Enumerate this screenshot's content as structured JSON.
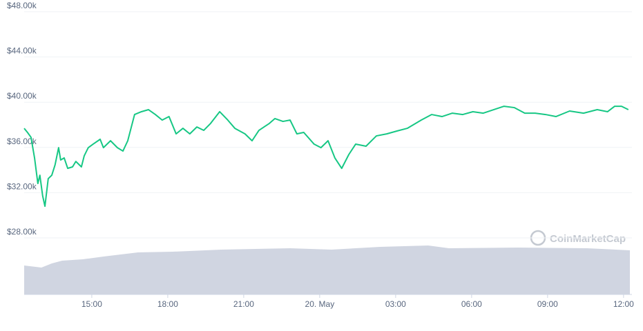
{
  "chart_data": {
    "type": "line",
    "watermark": "CoinMarketCap",
    "x": [
      12.33,
      12.46,
      12.6,
      12.74,
      12.87,
      12.95,
      13.06,
      13.15,
      13.28,
      13.42,
      13.55,
      13.69,
      13.77,
      13.91,
      14.05,
      14.24,
      14.37,
      14.59,
      14.7,
      14.86,
      15.05,
      15.33,
      15.46,
      15.74,
      16.01,
      16.23,
      16.42,
      16.69,
      16.96,
      17.24,
      17.51,
      17.78,
      18.05,
      18.33,
      18.6,
      18.87,
      19.15,
      19.42,
      19.69,
      20.05,
      20.37,
      20.65,
      21.05,
      21.33,
      21.6,
      22.01,
      22.23,
      22.55,
      22.83,
      23.1,
      23.37,
      23.78,
      24.05,
      24.33,
      24.6,
      24.87,
      25.15,
      25.42,
      25.83,
      26.24,
      26.65,
      27.05,
      27.46,
      28.01,
      28.42,
      28.83,
      29.24,
      29.65,
      30.05,
      30.46,
      30.87,
      31.28,
      31.69,
      32.1,
      32.51,
      32.92,
      33.33,
      33.87,
      34.42,
      34.96,
      35.37,
      35.65,
      35.92,
      36.19
    ],
    "series": [
      {
        "color": "#16c784",
        "values": [
          37690,
          37330,
          36900,
          35070,
          32810,
          33540,
          31720,
          30800,
          33240,
          33540,
          34460,
          35980,
          34890,
          35070,
          34150,
          34280,
          34760,
          34280,
          35250,
          35980,
          36290,
          36720,
          35980,
          36590,
          35980,
          35680,
          36590,
          38910,
          39160,
          39340,
          38910,
          38420,
          38730,
          37200,
          37690,
          37200,
          37810,
          37510,
          38120,
          39160,
          38420,
          37690,
          37200,
          36590,
          37510,
          38120,
          38550,
          38300,
          38420,
          37200,
          37330,
          36290,
          35980,
          36590,
          35070,
          34150,
          35370,
          36290,
          36110,
          37020,
          37200,
          37450,
          37690,
          38420,
          38910,
          38730,
          39030,
          38910,
          39160,
          39030,
          39340,
          39640,
          39520,
          39030,
          39030,
          38910,
          38730,
          39220,
          39030,
          39340,
          39160,
          39640,
          39640,
          39340
        ]
      }
    ],
    "xlim": [
      12.33,
      36.25
    ],
    "xticks": [
      {
        "value": 15,
        "label": "15:00"
      },
      {
        "value": 18,
        "label": "18:00"
      },
      {
        "value": 21,
        "label": "21:00"
      },
      {
        "value": 24,
        "label": "20. May"
      },
      {
        "value": 27,
        "label": "03:00"
      },
      {
        "value": 30,
        "label": "06:00"
      },
      {
        "value": 33,
        "label": "09:00"
      },
      {
        "value": 36,
        "label": "12:00"
      }
    ],
    "ylim": [
      23000,
      48000
    ],
    "yticks": [
      {
        "value": 48000,
        "label": "$48.00k"
      },
      {
        "value": 44000,
        "label": "$44.00k"
      },
      {
        "value": 40000,
        "label": "$40.00k"
      },
      {
        "value": 36000,
        "label": "$36.00k"
      },
      {
        "value": 32000,
        "label": "$32.00k"
      },
      {
        "value": 28000,
        "label": "$28.00k"
      }
    ],
    "grid": true
  }
}
